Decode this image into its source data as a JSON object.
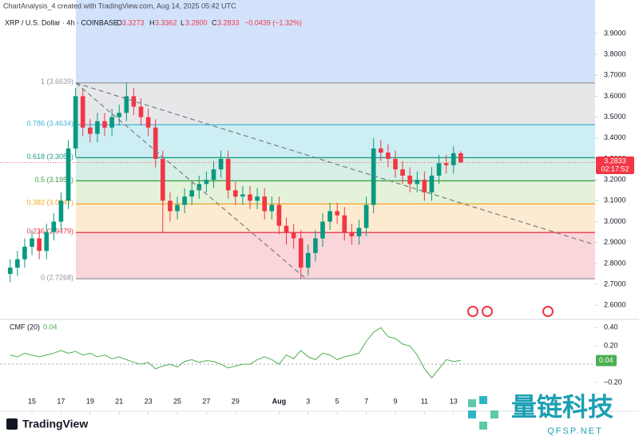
{
  "header": {
    "attribution": "ChartAnalysis_4 created with TradingView.com, Aug 14, 2025 05:42 UTC",
    "symbol": "XRP / U.S. Dollar · 4h · COINBASE",
    "ohlc_labels": [
      "O",
      "H",
      "L",
      "C"
    ],
    "ohlc_values": [
      "3.3273",
      "3.3362",
      "3.2800",
      "3.2833"
    ],
    "change": "−0.0439 (−1.32%)",
    "countdown": "02:17:52"
  },
  "footer": {
    "brand": "TradingView",
    "watermark": "量链科技",
    "watermark_url": "QFSP.NET"
  },
  "chart_data": [
    {
      "type": "candlestick",
      "up_color": "#089981",
      "down_color": "#f23645",
      "x": [
        13.5,
        14,
        14.5,
        15,
        15.5,
        16,
        16.5,
        17,
        17.5,
        18,
        18.5,
        19,
        19.5,
        20,
        20.5,
        21,
        21.5,
        22,
        22.5,
        23,
        23.5,
        24,
        24.5,
        25,
        25.5,
        26,
        26.5,
        27,
        27.5,
        28,
        28.5,
        29,
        29.5,
        30,
        30.5,
        31,
        31.5,
        32,
        32.5,
        33,
        33.5,
        34,
        34.5,
        35,
        35.5,
        36,
        36.5,
        37,
        37.5,
        38,
        38.5,
        39,
        39.5,
        40,
        40.5,
        41,
        41.5,
        42,
        42.5,
        43,
        43.5,
        44,
        44.5
      ],
      "open": [
        2.75,
        2.78,
        2.82,
        2.88,
        2.92,
        2.86,
        2.95,
        3.0,
        3.1,
        3.35,
        3.6,
        3.45,
        3.42,
        3.48,
        3.45,
        3.5,
        3.52,
        3.6,
        3.55,
        3.5,
        3.45,
        3.3,
        3.1,
        3.05,
        3.08,
        3.12,
        3.15,
        3.18,
        3.2,
        3.25,
        3.3,
        3.15,
        3.12,
        3.13,
        3.1,
        3.12,
        3.05,
        3.08,
        2.98,
        2.95,
        2.92,
        2.78,
        2.85,
        2.92,
        3.0,
        3.05,
        3.03,
        2.95,
        2.93,
        2.97,
        3.08,
        3.35,
        3.33,
        3.3,
        3.25,
        3.22,
        3.18,
        3.2,
        3.14,
        3.22,
        3.28,
        3.27,
        3.3273
      ],
      "high": [
        2.82,
        2.86,
        2.92,
        2.96,
        2.96,
        2.99,
        3.04,
        3.14,
        3.39,
        3.64,
        3.64,
        3.49,
        3.52,
        3.52,
        3.54,
        3.56,
        3.6639,
        3.64,
        3.59,
        3.54,
        3.49,
        3.34,
        3.14,
        3.12,
        3.16,
        3.19,
        3.22,
        3.24,
        3.29,
        3.34,
        3.34,
        3.19,
        3.17,
        3.17,
        3.16,
        3.16,
        3.12,
        3.12,
        3.02,
        2.99,
        2.96,
        2.89,
        2.96,
        3.04,
        3.09,
        3.09,
        3.07,
        2.99,
        3.01,
        3.12,
        3.4,
        3.39,
        3.37,
        3.34,
        3.29,
        3.26,
        3.24,
        3.24,
        3.26,
        3.32,
        3.32,
        3.36,
        3.3362
      ],
      "low": [
        2.71,
        2.74,
        2.78,
        2.84,
        2.82,
        2.82,
        2.91,
        2.96,
        3.06,
        3.31,
        3.41,
        3.38,
        3.38,
        3.41,
        3.41,
        3.46,
        3.48,
        3.51,
        3.46,
        3.41,
        3.26,
        2.95,
        3.0,
        3.01,
        3.04,
        3.08,
        3.11,
        3.14,
        3.16,
        3.21,
        3.11,
        3.08,
        3.08,
        3.06,
        3.06,
        3.01,
        3.01,
        2.94,
        2.89,
        2.87,
        2.7268,
        2.74,
        2.81,
        2.88,
        2.96,
        2.99,
        2.91,
        2.89,
        2.89,
        2.93,
        3.04,
        3.29,
        3.26,
        3.21,
        3.18,
        3.14,
        3.14,
        3.1,
        3.1,
        3.18,
        3.23,
        3.23,
        3.28
      ],
      "close": [
        2.78,
        2.82,
        2.88,
        2.92,
        2.86,
        2.95,
        3.0,
        3.1,
        3.35,
        3.6,
        3.45,
        3.42,
        3.48,
        3.45,
        3.5,
        3.52,
        3.6,
        3.55,
        3.5,
        3.45,
        3.3,
        3.1,
        3.05,
        3.08,
        3.12,
        3.15,
        3.18,
        3.2,
        3.25,
        3.3,
        3.15,
        3.12,
        3.13,
        3.1,
        3.12,
        3.05,
        3.08,
        2.98,
        2.95,
        2.92,
        2.78,
        2.85,
        2.92,
        3.0,
        3.05,
        3.03,
        2.95,
        2.93,
        2.97,
        3.08,
        3.35,
        3.33,
        3.3,
        3.25,
        3.22,
        3.18,
        3.2,
        3.14,
        3.22,
        3.28,
        3.27,
        3.3273,
        3.2833
      ],
      "xlim": [
        12.8,
        53.74
      ],
      "xticks": [
        15,
        17,
        19,
        21,
        23,
        25,
        27,
        29,
        {
          "value": 32,
          "label": "Aug"
        },
        {
          "value": 34,
          "label": "3"
        },
        {
          "value": 36,
          "label": "5"
        },
        {
          "value": 38,
          "label": "7"
        },
        {
          "value": 40,
          "label": "9"
        },
        {
          "value": 42,
          "label": "11"
        },
        {
          "value": 44,
          "label": "13"
        }
      ],
      "ylim": [
        2.54,
        4.06
      ],
      "yticks": [
        {
          "value": 2.6,
          "label": "2.6000"
        },
        {
          "value": 2.7,
          "label": "2.7000"
        },
        {
          "value": 2.8,
          "label": "2.8000"
        },
        {
          "value": 2.9,
          "label": "2.9000"
        },
        {
          "value": 3.0,
          "label": "3.0000"
        },
        {
          "value": 3.1,
          "label": "3.1000"
        },
        {
          "value": 3.2,
          "label": "3.2000"
        },
        {
          "value": 3.3,
          "label": "3.3000"
        },
        {
          "value": 3.4,
          "label": "3.4000"
        },
        {
          "value": 3.5,
          "label": "3.5000"
        },
        {
          "value": 3.6,
          "label": "3.6000"
        },
        {
          "value": 3.7,
          "label": "3.7000"
        },
        {
          "value": 3.8,
          "label": "3.8000"
        },
        {
          "value": 3.9,
          "label": "3.9000"
        }
      ],
      "fib_levels": [
        {
          "value": 3.6639,
          "label": "1 (3.6639)"
        },
        {
          "value": 3.4634,
          "label": "0.786 (3.4634)"
        },
        {
          "value": 3.3059,
          "label": "0.618 (3.3059)"
        },
        {
          "value": 3.1953,
          "label": "0.5 (3.1953)"
        },
        {
          "value": 3.0847,
          "label": "0.382 (3.0847)"
        },
        {
          "value": 2.9479,
          "label": "0.236 (2.9479)"
        },
        {
          "value": 2.7268,
          "label": "0 (2.7268)"
        }
      ],
      "fib_line_colors": [
        "#9598a1",
        "#3fb5d6",
        "#1e9e8c",
        "#43a047",
        "#f5a623",
        "#e53950",
        "#9598a1"
      ],
      "fib_band_colors": [
        "#d3e2fb",
        "#e6e7e9",
        "#cdeef3",
        "#d5efe6",
        "#e3f2d9",
        "#fdebd1",
        "#fad5d9"
      ]
    },
    {
      "type": "line",
      "title": "CMF (20)",
      "color": "#4caf50",
      "x": [
        13.5,
        14,
        14.5,
        15,
        15.5,
        16,
        16.5,
        17,
        17.5,
        18,
        18.5,
        19,
        19.5,
        20,
        20.5,
        21,
        21.5,
        22,
        22.5,
        23,
        23.5,
        24,
        24.5,
        25,
        25.5,
        26,
        26.5,
        27,
        27.5,
        28,
        28.5,
        29,
        29.5,
        30,
        30.5,
        31,
        31.5,
        32,
        32.5,
        33,
        33.5,
        34,
        34.5,
        35,
        35.5,
        36,
        36.5,
        37,
        37.5,
        38,
        38.5,
        39,
        39.5,
        40,
        40.5,
        41,
        41.5,
        42,
        42.5,
        43,
        43.5,
        44,
        44.5
      ],
      "values": [
        0.1,
        0.08,
        0.12,
        0.1,
        0.08,
        0.1,
        0.12,
        0.15,
        0.12,
        0.14,
        0.1,
        0.12,
        0.08,
        0.1,
        0.06,
        0.08,
        0.05,
        0.02,
        0.0,
        0.02,
        -0.05,
        -0.02,
        0.0,
        -0.03,
        0.03,
        0.05,
        0.02,
        0.04,
        0.03,
        0.0,
        -0.04,
        -0.02,
        0.0,
        0.0,
        0.05,
        0.08,
        0.05,
        0.0,
        0.1,
        0.06,
        0.15,
        0.08,
        0.05,
        0.12,
        0.1,
        0.05,
        0.08,
        0.1,
        0.12,
        0.25,
        0.35,
        0.4,
        0.3,
        0.28,
        0.22,
        0.2,
        0.1,
        -0.05,
        -0.15,
        -0.05,
        0.05,
        0.03,
        0.04
      ],
      "xlim": [
        12.8,
        53.74
      ],
      "ylim": [
        -0.41,
        0.49
      ],
      "yticks": [
        {
          "value": 0.4,
          "label": "0.40"
        },
        {
          "value": 0.2,
          "label": "0.20"
        },
        {
          "value": -0.2,
          "label": "−0.20"
        }
      ]
    }
  ]
}
